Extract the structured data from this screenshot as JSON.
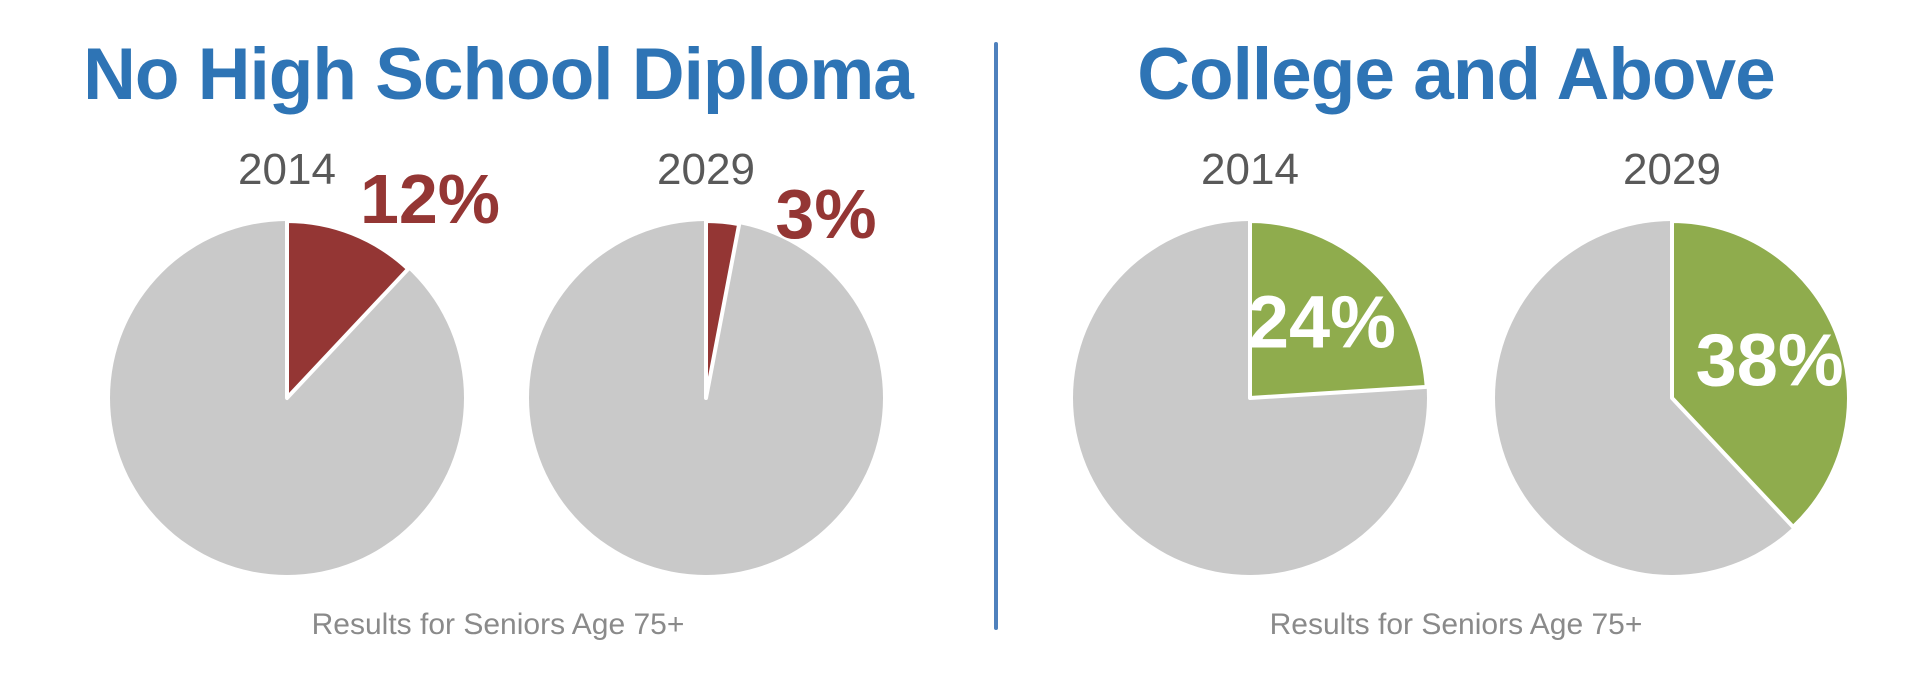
{
  "page": {
    "background": "#FFFFFF"
  },
  "divider": {
    "color": "#4F81BD"
  },
  "colors": {
    "title": "#2E74B5",
    "year_label": "#595959",
    "caption": "#8A8A8A",
    "pie_remainder": "#C9C9C9",
    "pie_stroke": "#FFFFFF",
    "negative_slice": "#943634",
    "positive_slice": "#8FAC4D",
    "inside_label": "#FFFFFF"
  },
  "chart_data": [
    {
      "type": "pie",
      "title": "No High School Diploma",
      "caption": "Results for Seniors Age 75+",
      "slice_color": "#943634",
      "remainder_color": "#C9C9C9",
      "label_position": "outside",
      "legend": "off",
      "pies": [
        {
          "year": "2014",
          "value": 12,
          "remainder": 88,
          "label": "12%"
        },
        {
          "year": "2029",
          "value": 3,
          "remainder": 97,
          "label": "3%"
        }
      ]
    },
    {
      "type": "pie",
      "title": "College and Above",
      "caption": "Results for Seniors Age 75+",
      "slice_color": "#8FAC4D",
      "remainder_color": "#C9C9C9",
      "label_position": "inside",
      "legend": "off",
      "pies": [
        {
          "year": "2014",
          "value": 24,
          "remainder": 76,
          "label": "24%"
        },
        {
          "year": "2029",
          "value": 38,
          "remainder": 62,
          "label": "38%"
        }
      ]
    }
  ]
}
